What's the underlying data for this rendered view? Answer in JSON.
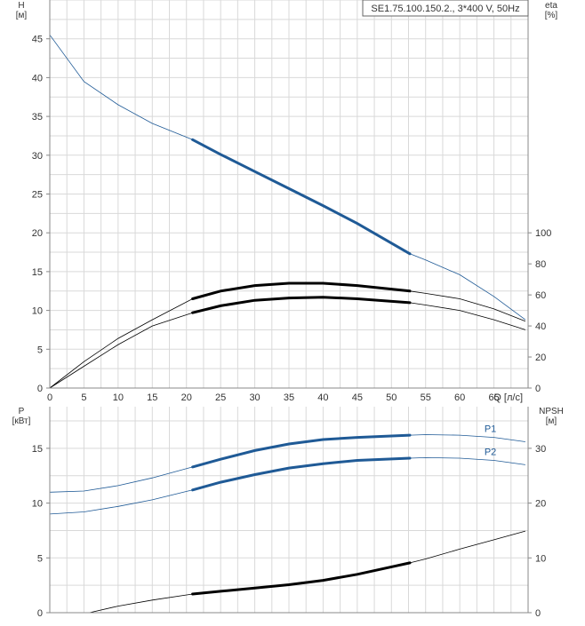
{
  "chart_data": [
    {
      "type": "line",
      "title": "SE1.75.100.150.2., 3*400 V, 50Hz",
      "xlabel": "Q [л/с]",
      "ylabel": "H\n[м]",
      "y2label": "eta\n[%]",
      "xlim": [
        0,
        70
      ],
      "ylim": [
        0,
        50
      ],
      "y2lim": [
        0,
        250
      ],
      "xticks": [
        "0",
        "5",
        "10",
        "15",
        "20",
        "25",
        "30",
        "35",
        "40",
        "45",
        "50",
        "55",
        "60",
        "65"
      ],
      "yticks": [
        "0",
        "5",
        "10",
        "15",
        "20",
        "25",
        "30",
        "35",
        "40",
        "45"
      ],
      "y2ticks": [
        "0",
        "20",
        "40",
        "60",
        "80",
        "100"
      ],
      "grid": true,
      "operating_range": [
        20.9,
        52.7
      ],
      "series": [
        {
          "name": "",
          "axis": "left",
          "color": "#1f5a96",
          "x": [
            0,
            5,
            10,
            15,
            20.9,
            25,
            30,
            35,
            40,
            45,
            52.7,
            55,
            60,
            65,
            69.6
          ],
          "y": [
            45.5,
            39.5,
            36.5,
            34.1,
            32.0,
            30.1,
            27.9,
            25.7,
            23.5,
            21.2,
            17.3,
            16.5,
            14.6,
            11.8,
            8.8
          ]
        },
        {
          "name": "",
          "axis": "right",
          "color": "#000000",
          "x": [
            0,
            5,
            10,
            15,
            20.9,
            25,
            30,
            35,
            40,
            45,
            52.7,
            55,
            60,
            65,
            69.6
          ],
          "y": [
            0,
            17,
            32,
            44,
            57.5,
            62.5,
            66,
            67.5,
            67.5,
            66,
            62.5,
            61,
            57.5,
            51,
            43
          ]
        },
        {
          "name": "",
          "axis": "right",
          "color": "#000000",
          "x": [
            0,
            5,
            10,
            15,
            20.9,
            25,
            30,
            35,
            40,
            45,
            52.7,
            55,
            60,
            65,
            69.6
          ],
          "y": [
            0,
            14,
            28,
            40,
            48.5,
            53,
            56.5,
            58,
            58.5,
            57.5,
            55,
            53.5,
            50,
            44,
            37.5
          ]
        }
      ]
    },
    {
      "type": "line",
      "xlabel": "",
      "ylabel": "P\n[кВт]",
      "y2label": "NPSH\n[м]",
      "xlim": [
        0,
        70
      ],
      "ylim": [
        0,
        18.8
      ],
      "y2lim": [
        0,
        37.6
      ],
      "yticks": [
        "0",
        "5",
        "10",
        "15"
      ],
      "y2ticks": [
        "0",
        "10",
        "20",
        "30"
      ],
      "grid": true,
      "operating_range": [
        20.9,
        52.7
      ],
      "series": [
        {
          "name": "P1",
          "axis": "left",
          "color": "#1f5a96",
          "x": [
            0,
            5,
            10,
            15,
            20.9,
            25,
            30,
            35,
            40,
            45,
            52.7,
            55,
            60,
            65,
            69.6
          ],
          "y": [
            11.0,
            11.1,
            11.6,
            12.3,
            13.3,
            14.0,
            14.8,
            15.4,
            15.8,
            16.0,
            16.2,
            16.25,
            16.2,
            16.0,
            15.6
          ]
        },
        {
          "name": "P2",
          "axis": "left",
          "color": "#1f5a96",
          "x": [
            0,
            5,
            10,
            15,
            20.9,
            25,
            30,
            35,
            40,
            45,
            52.7,
            55,
            60,
            65,
            69.6
          ],
          "y": [
            9.0,
            9.2,
            9.7,
            10.3,
            11.2,
            11.9,
            12.6,
            13.2,
            13.6,
            13.9,
            14.1,
            14.15,
            14.1,
            13.9,
            13.5
          ]
        },
        {
          "name": "",
          "axis": "right",
          "color": "#000000",
          "x": [
            5.8,
            10,
            15,
            20.9,
            25,
            30,
            35,
            40,
            45,
            52.7,
            55,
            60,
            65,
            69.6
          ],
          "y": [
            0,
            1.2,
            2.3,
            3.4,
            3.9,
            4.5,
            5.1,
            5.9,
            7.0,
            9.1,
            9.8,
            11.6,
            13.3,
            14.9
          ]
        }
      ]
    }
  ]
}
